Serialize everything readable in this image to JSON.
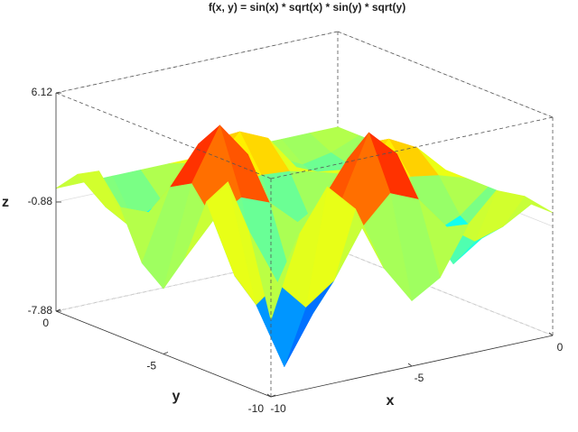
{
  "chart_data": {
    "type": "surface",
    "title": "f(x, y) = sin(x) * sqrt(x) * sin(y) * sqrt(y)",
    "xlabel": "x",
    "ylabel": "y",
    "zlabel": "z",
    "x": [
      -10,
      -9,
      -8,
      -7,
      -6,
      -5,
      -4,
      -3,
      -2,
      -1,
      0
    ],
    "y": [
      -10,
      -9,
      -8,
      -7,
      -6,
      -5,
      -4,
      -3,
      -2,
      -1,
      0
    ],
    "z": [
      [
        -2.96,
        2.13,
        4.81,
        2.99,
        -1.18,
        -3.69,
        -2.6,
        0.42,
        2.21,
        1.45,
        0
      ],
      [
        2.13,
        -1.53,
        -3.46,
        -2.15,
        0.85,
        2.65,
        1.87,
        -0.3,
        -1.59,
        -1.04,
        0
      ],
      [
        4.81,
        -3.46,
        -7.83,
        -4.86,
        1.91,
        6.0,
        4.24,
        -0.68,
        -3.6,
        -2.36,
        0
      ],
      [
        2.99,
        -2.15,
        -4.86,
        -3.02,
        1.19,
        3.73,
        2.63,
        -0.42,
        -2.24,
        -1.46,
        0
      ],
      [
        -1.18,
        0.85,
        1.91,
        1.19,
        -0.47,
        -1.47,
        -1.04,
        0.17,
        0.88,
        0.58,
        0
      ],
      [
        -3.69,
        2.65,
        6.0,
        3.73,
        -1.47,
        -4.6,
        -3.25,
        0.52,
        2.76,
        1.81,
        0
      ],
      [
        -2.6,
        1.87,
        4.24,
        2.63,
        -1.04,
        -3.25,
        -2.29,
        0.37,
        1.95,
        1.27,
        0
      ],
      [
        0.42,
        -0.3,
        -0.68,
        -0.42,
        0.17,
        0.52,
        0.37,
        -0.06,
        -0.31,
        -0.21,
        0
      ],
      [
        2.21,
        -1.59,
        -3.6,
        -2.24,
        0.88,
        2.76,
        1.95,
        -0.31,
        -1.65,
        -1.08,
        0
      ],
      [
        1.45,
        -1.04,
        -2.36,
        -1.46,
        0.58,
        1.81,
        1.27,
        -0.21,
        -1.08,
        -0.71,
        0
      ],
      [
        0,
        0,
        0,
        0,
        0,
        0,
        0,
        0,
        0,
        0,
        0
      ]
    ],
    "xlim": [
      -10,
      0
    ],
    "ylim": [
      -10,
      0
    ],
    "zlim": [
      -7.88,
      6.12
    ],
    "xticks": [
      -10,
      -5,
      0
    ],
    "yticks": [
      -10,
      -5,
      0
    ],
    "zticks": [
      -7.88,
      -0.88,
      6.12
    ],
    "colormap": "jet",
    "grid": true
  }
}
